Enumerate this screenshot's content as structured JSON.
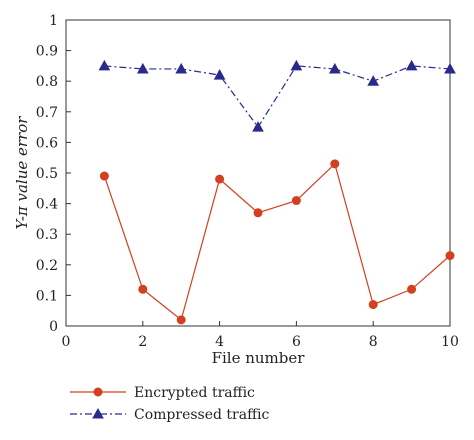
{
  "chart_data": {
    "type": "line",
    "title": "",
    "xlabel": "File number",
    "ylabel": "Y-π value error",
    "xlim": [
      0,
      10
    ],
    "ylim": [
      0,
      1
    ],
    "x_ticks": [
      0,
      2,
      4,
      6,
      8,
      10
    ],
    "y_ticks": [
      0,
      0.1,
      0.2,
      0.3,
      0.4,
      0.5,
      0.6,
      0.7,
      0.8,
      0.9,
      1
    ],
    "x_tick_labels": [
      "0",
      "2",
      "4",
      "6",
      "8",
      "10"
    ],
    "y_tick_labels": [
      "0",
      "0.1",
      "0.2",
      "0.3",
      "0.4",
      "0.5",
      "0.6",
      "0.7",
      "0.8",
      "0.9",
      "1"
    ],
    "grid": false,
    "legend_position": "bottom-left, below plot",
    "x": [
      1,
      2,
      3,
      4,
      5,
      6,
      7,
      8,
      9,
      10
    ],
    "series": [
      {
        "name": "Encrypted traffic",
        "color": "#d2401f",
        "marker": "circle",
        "line_style": "solid",
        "values": [
          0.49,
          0.12,
          0.02,
          0.48,
          0.37,
          0.41,
          0.53,
          0.07,
          0.12,
          0.23
        ]
      },
      {
        "name": "Compressed traffic",
        "color": "#2a2a8c",
        "marker": "triangle",
        "line_style": "dash-dot",
        "values": [
          0.85,
          0.84,
          0.84,
          0.82,
          0.65,
          0.85,
          0.84,
          0.8,
          0.85,
          0.84
        ]
      }
    ]
  }
}
